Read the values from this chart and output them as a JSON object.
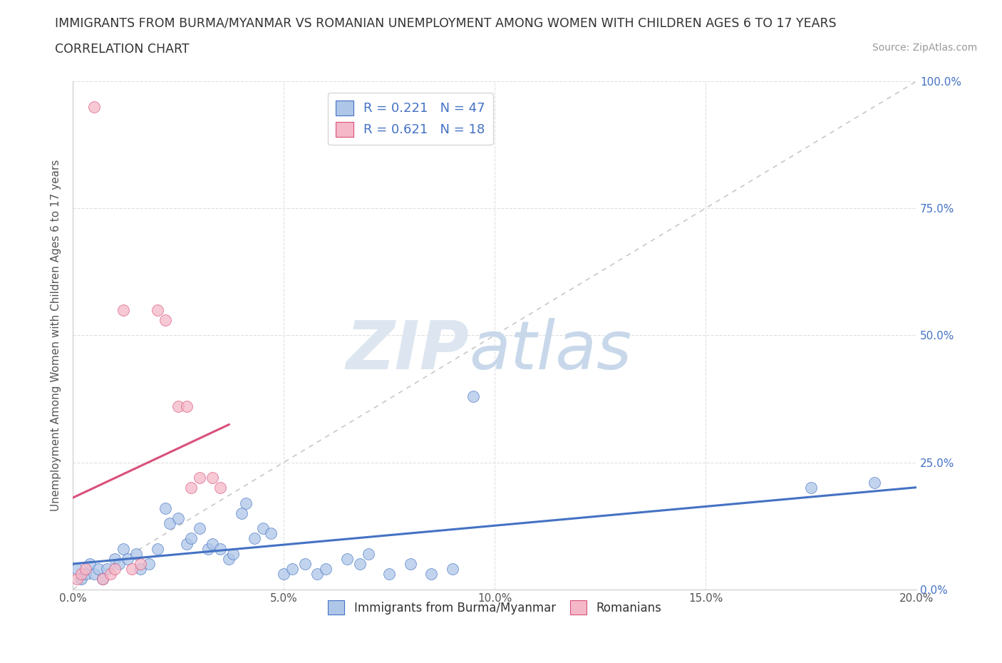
{
  "title_line1": "IMMIGRANTS FROM BURMA/MYANMAR VS ROMANIAN UNEMPLOYMENT AMONG WOMEN WITH CHILDREN AGES 6 TO 17 YEARS",
  "title_line2": "CORRELATION CHART",
  "source_text": "Source: ZipAtlas.com",
  "ylabel": "Unemployment Among Women with Children Ages 6 to 17 years",
  "xlabel_blue": "Immigrants from Burma/Myanmar",
  "xlabel_pink": "Romanians",
  "r_blue": 0.221,
  "n_blue": 47,
  "r_pink": 0.621,
  "n_pink": 18,
  "color_blue": "#aec6e8",
  "color_pink": "#f4b8c8",
  "trendline_blue": "#4472c4",
  "trendline_pink": "#d9507a",
  "background_color": "#ffffff",
  "grid_color": "#e0e0e0",
  "xlim": [
    0.0,
    0.2
  ],
  "ylim": [
    0.0,
    1.0
  ],
  "xticks": [
    0.0,
    0.05,
    0.1,
    0.15,
    0.2
  ],
  "yticks": [
    0.0,
    0.25,
    0.5,
    0.75,
    1.0
  ],
  "xtick_labels": [
    "0.0%",
    "5.0%",
    "10.0%",
    "15.0%",
    "20.0%"
  ],
  "ytick_labels_right": [
    "0.0%",
    "25.0%",
    "50.0%",
    "75.0%",
    "100.0%"
  ],
  "blue_scatter_x": [
    0.001,
    0.002,
    0.003,
    0.004,
    0.005,
    0.006,
    0.007,
    0.008,
    0.01,
    0.011,
    0.012,
    0.013,
    0.015,
    0.016,
    0.018,
    0.02,
    0.022,
    0.023,
    0.025,
    0.027,
    0.028,
    0.03,
    0.032,
    0.033,
    0.035,
    0.037,
    0.038,
    0.04,
    0.041,
    0.043,
    0.045,
    0.047,
    0.05,
    0.052,
    0.055,
    0.058,
    0.06,
    0.065,
    0.068,
    0.07,
    0.075,
    0.08,
    0.085,
    0.09,
    0.095,
    0.175,
    0.19
  ],
  "blue_scatter_y": [
    0.04,
    0.02,
    0.03,
    0.05,
    0.03,
    0.04,
    0.02,
    0.04,
    0.06,
    0.05,
    0.08,
    0.06,
    0.07,
    0.04,
    0.05,
    0.08,
    0.16,
    0.13,
    0.14,
    0.09,
    0.1,
    0.12,
    0.08,
    0.09,
    0.08,
    0.06,
    0.07,
    0.15,
    0.17,
    0.1,
    0.12,
    0.11,
    0.03,
    0.04,
    0.05,
    0.03,
    0.04,
    0.06,
    0.05,
    0.07,
    0.03,
    0.05,
    0.03,
    0.04,
    0.38,
    0.2,
    0.21
  ],
  "pink_scatter_x": [
    0.001,
    0.002,
    0.003,
    0.005,
    0.007,
    0.009,
    0.01,
    0.012,
    0.014,
    0.016,
    0.02,
    0.022,
    0.025,
    0.027,
    0.028,
    0.03,
    0.033,
    0.035
  ],
  "pink_scatter_y": [
    0.02,
    0.03,
    0.04,
    0.95,
    0.02,
    0.03,
    0.04,
    0.55,
    0.04,
    0.05,
    0.55,
    0.53,
    0.36,
    0.36,
    0.2,
    0.22,
    0.22,
    0.2
  ],
  "watermark_zip": "ZIP",
  "watermark_atlas": "atlas"
}
